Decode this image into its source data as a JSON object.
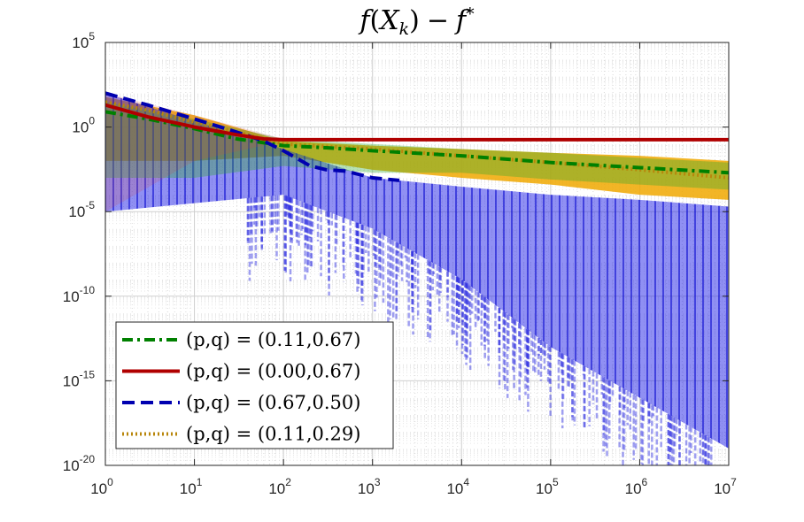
{
  "chart_data": {
    "type": "line",
    "title": "f(X_k) − f*",
    "title_parts": {
      "f": "f",
      "open": "(",
      "X": "X",
      "k": "k",
      "close": ")",
      "minus": "−",
      "fstar": "f",
      "star": "*"
    },
    "xlabel": "",
    "ylabel": "",
    "xscale": "log",
    "yscale": "log",
    "xlim": [
      1,
      10000000
    ],
    "ylim": [
      1e-20,
      100000
    ],
    "grid": true,
    "minor_grid": true,
    "x_ticks": [
      {
        "base": "10",
        "exp": "0",
        "value": 1
      },
      {
        "base": "10",
        "exp": "1",
        "value": 10
      },
      {
        "base": "10",
        "exp": "2",
        "value": 100
      },
      {
        "base": "10",
        "exp": "3",
        "value": 1000
      },
      {
        "base": "10",
        "exp": "4",
        "value": 10000
      },
      {
        "base": "10",
        "exp": "5",
        "value": 100000
      },
      {
        "base": "10",
        "exp": "6",
        "value": 1000000
      },
      {
        "base": "10",
        "exp": "7",
        "value": 10000000
      }
    ],
    "y_ticks": [
      {
        "base": "10",
        "exp": "-20",
        "value": 1e-20
      },
      {
        "base": "10",
        "exp": "-15",
        "value": 1e-15
      },
      {
        "base": "10",
        "exp": "-10",
        "value": 1e-10
      },
      {
        "base": "10",
        "exp": "-5",
        "value": 1e-05
      },
      {
        "base": "10",
        "exp": "0",
        "value": 1
      },
      {
        "base": "10",
        "exp": "5",
        "value": 100000
      }
    ],
    "legend_position": "bottom-left",
    "series": [
      {
        "name": "(p,q) = (0.11,0.67)",
        "color": "#008000",
        "style": "dash-dot",
        "x": [
          1,
          3,
          10,
          30,
          100,
          300,
          1000,
          10000,
          100000,
          1000000,
          10000000
        ],
        "y": [
          8,
          3,
          0.8,
          0.2,
          0.08,
          0.06,
          0.04,
          0.02,
          0.008,
          0.004,
          0.002
        ],
        "band_x": [
          1,
          10,
          100,
          1000,
          10000,
          100000,
          1000000,
          10000000
        ],
        "band_low": [
          0.001,
          0.001,
          0.005,
          0.002,
          0.002,
          0.0008,
          0.0004,
          0.0002
        ],
        "band_high": [
          30,
          3,
          0.2,
          0.1,
          0.05,
          0.03,
          0.015,
          0.008
        ]
      },
      {
        "name": "(p,q) = (0.00,0.67)",
        "color": "#b00000",
        "style": "solid",
        "x": [
          1,
          3,
          10,
          30,
          60,
          100,
          1000,
          10000,
          100000,
          1000000,
          10000000
        ],
        "y": [
          20,
          4,
          1,
          0.35,
          0.2,
          0.18,
          0.18,
          0.18,
          0.18,
          0.18,
          0.18
        ],
        "band_x": [
          1,
          10,
          100,
          10000000
        ],
        "band_low": [
          1e-05,
          0.01,
          0.15,
          0.15
        ],
        "band_high": [
          100,
          5,
          0.2,
          0.2
        ]
      },
      {
        "name": "(p,q) = (0.67,0.50)",
        "color": "#0000b0",
        "style": "dashed",
        "x": [
          1,
          3,
          10,
          30,
          60,
          100,
          200,
          300,
          500,
          1000,
          2000
        ],
        "y": [
          100,
          20,
          3,
          0.5,
          0.15,
          0.04,
          0.005,
          0.003,
          0.0025,
          0.001,
          0.0007
        ],
        "band_x": [
          1,
          100,
          1000,
          10000,
          100000,
          1000000,
          10000000
        ],
        "band_low": [
          1e-05,
          0.0001,
          1e-06,
          1e-09,
          1e-13,
          1e-16,
          1e-19
        ],
        "band_high": [
          100,
          0.05,
          0.001,
          0.0003,
          0.0001,
          5e-05,
          2e-05
        ]
      },
      {
        "name": "(p,q) = (0.11,0.29)",
        "color": "#b8860b",
        "style": "dotted",
        "x": [
          1,
          3,
          10,
          30,
          100,
          1000,
          10000,
          100000,
          1000000,
          10000000
        ],
        "y": [
          30,
          10,
          2,
          0.5,
          0.1,
          0.05,
          0.02,
          0.008,
          0.003,
          0.001
        ],
        "band_x": [
          1,
          10,
          100,
          1000,
          10000,
          100000,
          1000000,
          10000000
        ],
        "band_low": [
          0.01,
          0.01,
          0.02,
          0.003,
          0.001,
          0.0004,
          0.0001,
          5e-05
        ],
        "band_high": [
          60,
          5,
          0.15,
          0.08,
          0.05,
          0.03,
          0.02,
          0.01
        ]
      }
    ]
  }
}
